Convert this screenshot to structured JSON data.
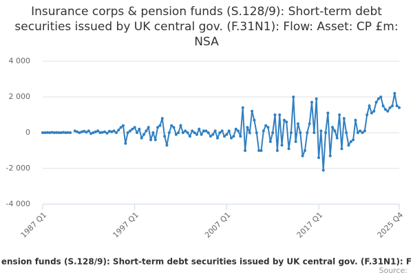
{
  "chart_data": {
    "type": "line",
    "title": "Insurance corps & pension funds (S.128/9): Short-term debt securities issued by UK central gov. (F.31N1): Flow: Asset: CP £m: NSA",
    "categories": [
      "1987 Q1",
      null,
      null,
      null,
      null,
      null,
      null,
      null,
      null,
      null,
      null,
      null,
      null,
      null,
      null,
      null,
      null,
      null,
      null,
      null,
      null,
      null,
      null,
      null,
      null,
      null,
      null,
      null,
      null,
      null,
      null,
      null,
      null,
      null,
      null,
      null,
      null,
      null,
      null,
      null,
      "1997 Q1",
      null,
      null,
      null,
      null,
      null,
      null,
      null,
      null,
      null,
      null,
      null,
      null,
      null,
      null,
      null,
      null,
      null,
      null,
      null,
      null,
      null,
      null,
      null,
      null,
      null,
      null,
      null,
      null,
      null,
      null,
      null,
      null,
      null,
      null,
      null,
      null,
      null,
      null,
      null,
      "2007 Q1",
      null,
      null,
      null,
      null,
      null,
      null,
      null,
      null,
      null,
      null,
      null,
      null,
      null,
      null,
      null,
      null,
      null,
      null,
      null,
      null,
      null,
      null,
      null,
      null,
      null,
      null,
      null,
      null,
      null,
      null,
      null,
      null,
      null,
      null,
      null,
      null,
      null,
      null,
      null,
      "2017 Q1",
      null,
      null,
      null,
      null,
      null,
      null,
      null,
      null,
      null,
      null,
      null,
      null,
      null,
      null,
      null,
      null,
      null,
      null,
      null,
      null,
      null,
      null,
      null,
      null,
      null,
      null,
      null,
      null,
      null,
      null,
      null,
      null,
      null,
      null,
      "2025 Q4"
    ],
    "series": [
      {
        "name": "ension funds (S.128/9): Short-term debt securities issued by UK central gov. (F.31N1): F",
        "color": "#2f7fc1",
        "values": [
          0,
          0,
          10,
          0,
          20,
          0,
          10,
          0,
          0,
          20,
          0,
          10,
          0,
          null,
          100,
          50,
          0,
          50,
          80,
          30,
          100,
          -50,
          0,
          50,
          100,
          0,
          20,
          50,
          -30,
          80,
          50,
          100,
          0,
          150,
          300,
          400,
          -600,
          0,
          100,
          200,
          300,
          0,
          200,
          -300,
          -100,
          100,
          300,
          -400,
          0,
          -400,
          300,
          400,
          800,
          -200,
          -700,
          0,
          400,
          300,
          -100,
          0,
          400,
          0,
          100,
          0,
          -200,
          100,
          0,
          -100,
          200,
          -100,
          100,
          100,
          0,
          -200,
          -100,
          100,
          -300,
          0,
          100,
          -200,
          -100,
          100,
          -300,
          -200,
          200,
          100,
          -200,
          1400,
          -1000,
          300,
          0,
          1200,
          700,
          0,
          -1000,
          -1000,
          100,
          400,
          300,
          -500,
          0,
          1000,
          -1000,
          1000,
          -700,
          700,
          600,
          -900,
          0,
          2000,
          -500,
          500,
          0,
          -1300,
          -1000,
          0,
          500,
          1700,
          0,
          1900,
          -1400,
          100,
          -2100,
          0,
          1100,
          -1300,
          300,
          100,
          -300,
          1000,
          -900,
          800,
          0,
          -700,
          -500,
          -400,
          700,
          0,
          100,
          0,
          100,
          1000,
          1500,
          1100,
          1200,
          1700,
          1900,
          2000,
          1500,
          1300,
          1200,
          1400,
          1500,
          2200,
          1500,
          1400
        ]
      }
    ],
    "ylim": [
      -4000,
      4000
    ],
    "yticks": [
      {
        "value": 4000,
        "label": "4 000"
      },
      {
        "value": 2000,
        "label": "2 000"
      },
      0,
      {
        "value": -2000,
        "label": "-2 000"
      },
      {
        "value": -4000,
        "label": "-4 000"
      }
    ],
    "grid": true,
    "source": "Source:"
  }
}
